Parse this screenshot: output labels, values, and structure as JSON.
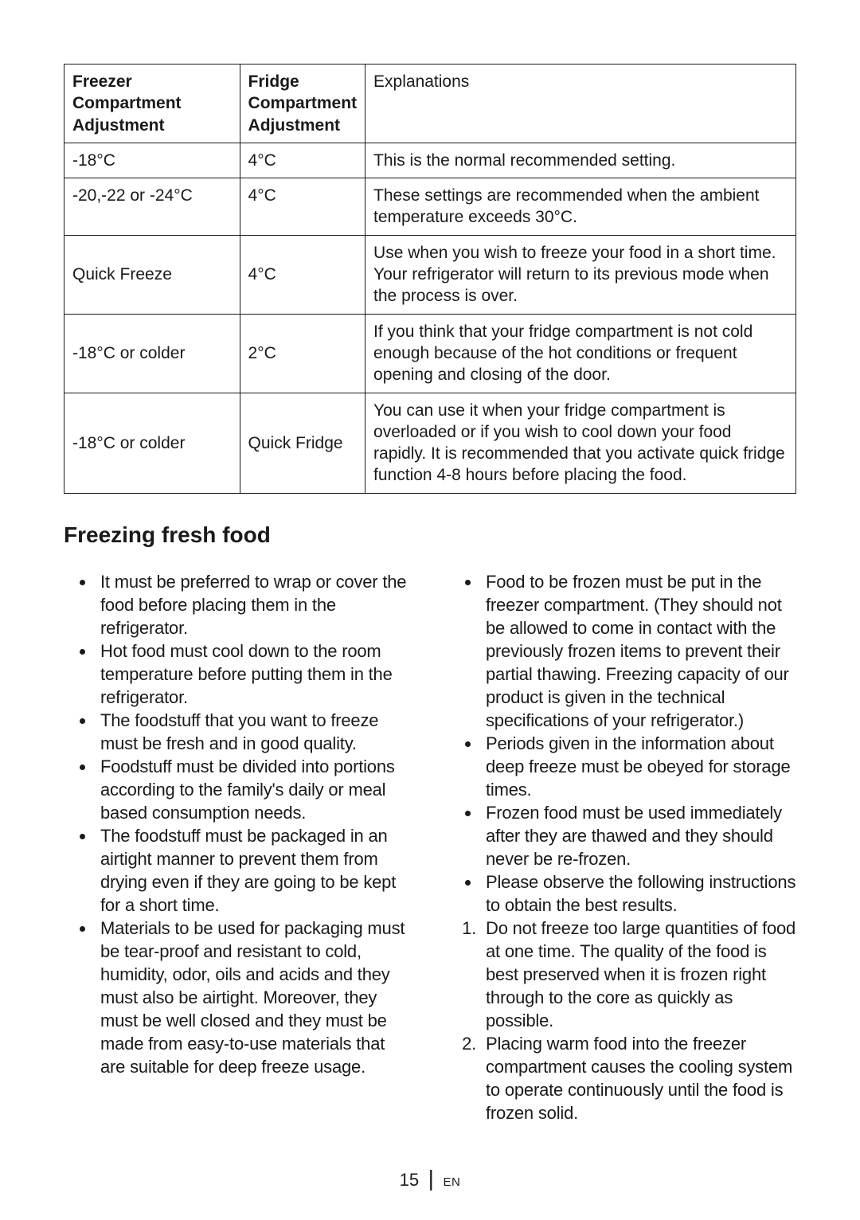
{
  "table": {
    "headers": {
      "col1": "Freezer Compartment Adjustment",
      "col2": "Fridge Compartment Adjustment",
      "col3": "Explanations"
    },
    "rows": [
      {
        "c1": "-18°C",
        "c2": "4°C",
        "c3": "This is the normal recommended setting."
      },
      {
        "c1": "-20,-22 or -24°C",
        "c2": "4°C",
        "c3": "These settings are recommended when the ambient temperature exceeds 30°C."
      },
      {
        "c1": "Quick Freeze",
        "c2": "4°C",
        "c3": "Use when you wish to freeze your food in a short time. Your refrigerator will return to its previous mode when the process is over."
      },
      {
        "c1": "-18°C or colder",
        "c2": "2°C",
        "c3": "If you think that your fridge compartment is not cold enough because of the hot conditions or frequent opening and closing of the door."
      },
      {
        "c1": "-18°C or colder",
        "c2": "Quick Fridge",
        "c3": "You can use it when your fridge compartment is overloaded or if you wish to cool down your food rapidly. It is recommended that you activate quick fridge function 4-8 hours before placing the food."
      }
    ]
  },
  "section_title": "Freezing fresh food",
  "left_bullets": [
    "It must be preferred to wrap or cover the food before placing them in the refrigerator.",
    "Hot food must cool down to the room temperature before putting them in the refrigerator.",
    "The foodstuff that you want to freeze must be fresh and in good quality.",
    "Foodstuff must be divided into portions according to the family's daily or meal based consumption needs.",
    "The foodstuff must be packaged in an airtight manner to prevent them from drying even if they are going to be kept for a short time.",
    "Materials to be used for packaging must be tear-proof and resistant to cold, humidity, odor, oils and acids and they must also be airtight. Moreover, they must be well closed and they must be made from easy-to-use materials that are suitable for deep freeze usage."
  ],
  "right_bullets": [
    "Food to be frozen must be put in the freezer compartment. (They should not be allowed to come in contact with the previously frozen items to prevent their partial thawing. Freezing capacity of our product is given in the technical specifications of your refrigerator.)",
    "Periods given in the information about deep freeze must be obeyed for storage times.",
    "Frozen food must be used immediately after they are thawed and they should never be re-frozen.",
    "Please observe the following instructions to obtain the best results."
  ],
  "right_numbered": [
    "Do not freeze too large quantities of food at one time. The quality of the food is best preserved when it is frozen right through to the core as quickly as possible.",
    "Placing warm food into the freezer compartment causes the cooling system to operate continuously until the food is frozen solid."
  ],
  "footer": {
    "page": "15",
    "lang": "EN"
  }
}
